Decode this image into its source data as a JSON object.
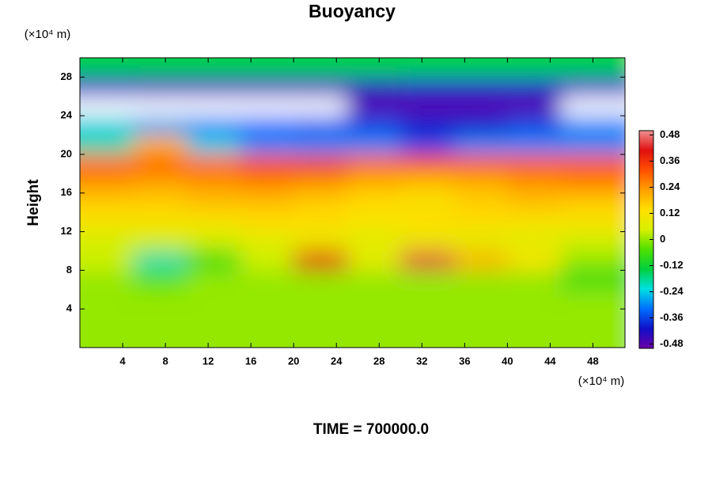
{
  "chart_data": {
    "type": "heatmap",
    "title": "Buoyancy",
    "ylabel": "Height",
    "y_unit": "(×10⁴ m)",
    "x_unit": "(×10⁴ m)",
    "footer": "TIME = 700000.0",
    "xlim": [
      0,
      51
    ],
    "ylim": [
      0,
      30
    ],
    "xticks": [
      4,
      8,
      12,
      16,
      20,
      24,
      28,
      32,
      36,
      40,
      44,
      48
    ],
    "yticks": [
      4,
      8,
      12,
      16,
      20,
      24,
      28
    ],
    "x": [
      2.5,
      7.5,
      12.5,
      17.5,
      22.5,
      27.5,
      32.5,
      37.5,
      42.5,
      47.5
    ],
    "y": [
      1,
      3,
      5,
      7,
      9,
      11,
      13,
      15,
      17,
      19,
      21,
      23,
      25,
      27,
      29
    ],
    "z": [
      [
        0.0,
        0.0,
        0.0,
        0.0,
        0.0,
        0.0,
        0.0,
        0.0,
        0.0,
        0.0
      ],
      [
        0.0,
        0.0,
        0.0,
        0.0,
        0.0,
        0.0,
        0.0,
        0.0,
        0.0,
        0.0
      ],
      [
        0.0,
        0.0,
        0.0,
        0.0,
        0.0,
        0.0,
        0.0,
        0.0,
        0.0,
        0.0
      ],
      [
        0.0,
        -0.04,
        0.0,
        0.0,
        0.0,
        0.0,
        0.0,
        0.0,
        0.0,
        -0.08
      ],
      [
        0.04,
        -0.2,
        -0.08,
        0.04,
        0.4,
        0.08,
        0.44,
        0.2,
        0.12,
        0.0
      ],
      [
        0.04,
        0.04,
        0.04,
        0.06,
        0.08,
        0.06,
        0.08,
        0.06,
        0.06,
        0.04
      ],
      [
        0.12,
        0.12,
        0.12,
        0.14,
        0.14,
        0.12,
        0.14,
        0.14,
        0.12,
        0.12
      ],
      [
        0.16,
        0.16,
        0.18,
        0.18,
        0.16,
        0.14,
        0.12,
        0.16,
        0.18,
        0.16
      ],
      [
        0.24,
        0.22,
        0.24,
        0.26,
        0.24,
        0.2,
        0.18,
        0.2,
        0.24,
        0.26
      ],
      [
        0.3,
        0.3,
        0.3,
        0.34,
        0.36,
        0.3,
        0.32,
        0.32,
        0.32,
        0.32
      ],
      [
        -0.2,
        0.2,
        -0.24,
        -0.3,
        -0.3,
        -0.3,
        -0.36,
        -0.3,
        -0.3,
        -0.3
      ],
      [
        -0.24,
        -0.28,
        -0.3,
        -0.32,
        -0.34,
        -0.36,
        -0.4,
        -0.4,
        -0.36,
        -0.3
      ],
      [
        null,
        null,
        null,
        null,
        null,
        -0.48,
        -0.48,
        -0.48,
        -0.48,
        null
      ],
      [
        -0.4,
        -0.42,
        -0.42,
        -0.42,
        -0.42,
        -0.42,
        -0.4,
        -0.4,
        -0.4,
        -0.4
      ],
      [
        -0.14,
        -0.14,
        -0.14,
        -0.14,
        -0.14,
        -0.14,
        -0.14,
        -0.14,
        -0.14,
        -0.14
      ]
    ],
    "clim": [
      -0.5,
      0.5
    ],
    "cticks": [
      -0.48,
      -0.36,
      -0.24,
      -0.12,
      0,
      0.12,
      0.24,
      0.36,
      0.48
    ],
    "colormap": [
      "#6a00a8",
      "#1010c8",
      "#0070ff",
      "#00e0e0",
      "#00d040",
      "#50e000",
      "#d8f000",
      "#ffe000",
      "#ffa000",
      "#ff5000",
      "#e01010",
      "#f09090"
    ]
  }
}
